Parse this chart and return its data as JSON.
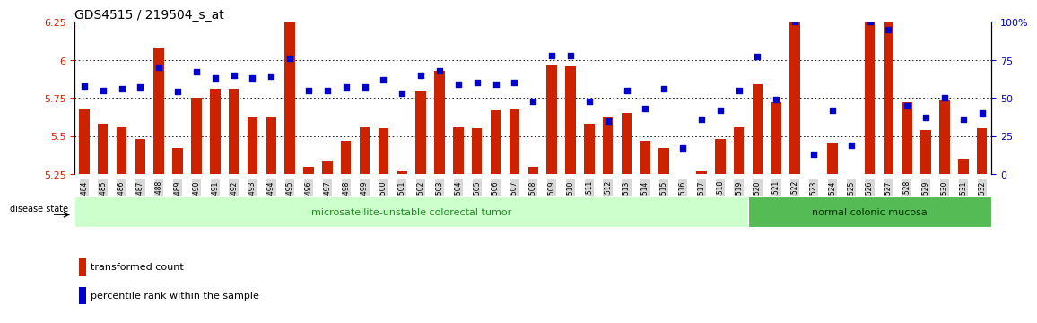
{
  "title": "GDS4515 / 219504_s_at",
  "ylim": [
    5.25,
    6.25
  ],
  "yticks": [
    5.25,
    5.5,
    5.75,
    6.0,
    6.25
  ],
  "ytick_labels": [
    "5.25",
    "5.5",
    "5.75",
    "6",
    "6.25"
  ],
  "right_yticks": [
    0,
    25,
    50,
    75,
    100
  ],
  "right_ytick_labels": [
    "0",
    "25",
    "50",
    "75",
    "100%"
  ],
  "samples": [
    "GSM604484",
    "GSM604485",
    "GSM604486",
    "GSM604487",
    "GSM604488",
    "GSM604489",
    "GSM604490",
    "GSM604491",
    "GSM604492",
    "GSM604493",
    "GSM604494",
    "GSM604495",
    "GSM604496",
    "GSM604497",
    "GSM604498",
    "GSM604499",
    "GSM604500",
    "GSM604501",
    "GSM604502",
    "GSM604503",
    "GSM604504",
    "GSM604505",
    "GSM604506",
    "GSM604507",
    "GSM604508",
    "GSM604509",
    "GSM604510",
    "GSM604511",
    "GSM604512",
    "GSM604513",
    "GSM604514",
    "GSM604515",
    "GSM604516",
    "GSM604517",
    "GSM604518",
    "GSM604519",
    "GSM604520",
    "GSM604521",
    "GSM604522",
    "GSM604523",
    "GSM604524",
    "GSM604525",
    "GSM604526",
    "GSM604527",
    "GSM604528",
    "GSM604529",
    "GSM604530",
    "GSM604531",
    "GSM604532"
  ],
  "bar_values": [
    5.68,
    5.58,
    5.56,
    5.48,
    6.08,
    5.42,
    5.75,
    5.81,
    5.81,
    5.63,
    5.63,
    6.27,
    5.3,
    5.34,
    5.47,
    5.56,
    5.55,
    5.27,
    5.8,
    5.93,
    5.56,
    5.55,
    5.67,
    5.68,
    5.3,
    5.97,
    5.96,
    5.58,
    5.63,
    5.65,
    5.47,
    5.42,
    5.18,
    5.27,
    5.48,
    5.56,
    5.84,
    5.72,
    6.27,
    5.14,
    5.46,
    5.2,
    6.27,
    6.27,
    5.72,
    5.54,
    5.74,
    5.35,
    5.55
  ],
  "percentile_values": [
    58,
    55,
    56,
    57,
    70,
    54,
    67,
    63,
    65,
    63,
    64,
    76,
    55,
    55,
    57,
    57,
    62,
    53,
    65,
    68,
    59,
    60,
    59,
    60,
    48,
    78,
    78,
    48,
    35,
    55,
    43,
    56,
    17,
    36,
    42,
    55,
    77,
    49,
    100,
    13,
    42,
    19,
    100,
    95,
    45,
    37,
    50,
    36,
    40
  ],
  "disease_groups": [
    {
      "label": "microsatellite-unstable colorectal tumor",
      "start": 0,
      "end": 36,
      "color": "#ccffcc",
      "text_color": "#228B22"
    },
    {
      "label": "normal colonic mucosa",
      "start": 36,
      "end": 49,
      "color": "#55bb55",
      "text_color": "#003300"
    }
  ],
  "bar_color": "#cc2200",
  "percentile_color": "#0000cc",
  "bar_bottom": 5.25,
  "background_color": "#ffffff",
  "tick_color_left": "#cc2200",
  "tick_color_right": "#0000cc",
  "grid_dotted_at": [
    5.5,
    5.75,
    6.0
  ],
  "disease_state_label": "disease state"
}
